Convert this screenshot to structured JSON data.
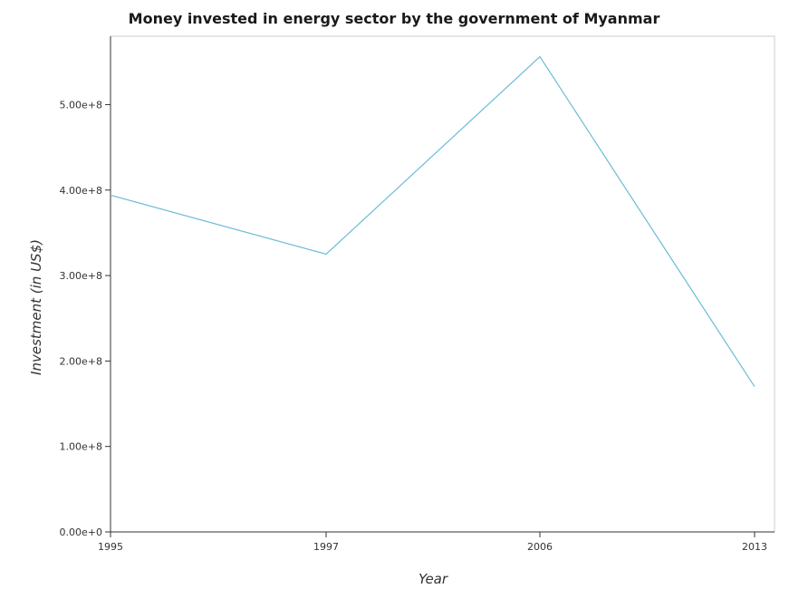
{
  "chart_data": {
    "type": "line",
    "title": "Money invested in energy sector by the government of Myanmar",
    "xlabel": "Year",
    "ylabel": "Investment (in US$)",
    "x": [
      "1995",
      "1997",
      "2006",
      "2013"
    ],
    "series": [
      {
        "values": [
          394000000,
          325000000,
          556000000,
          170000000
        ]
      }
    ],
    "yticks": [
      0,
      100000000,
      200000000,
      300000000,
      400000000,
      500000000
    ],
    "ytick_labels": [
      "0.00e+0",
      "1.00e+8",
      "2.00e+8",
      "3.00e+8",
      "4.00e+8",
      "5.00e+8"
    ],
    "ylim": [
      0,
      580000000
    ],
    "line_color": "#6bbbd8",
    "grid": false,
    "legend": "none"
  }
}
